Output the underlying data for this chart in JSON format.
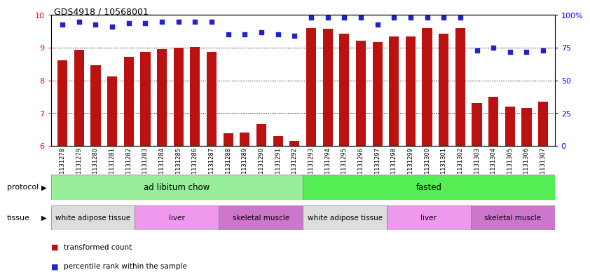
{
  "title": "GDS4918 / 10568001",
  "samples": [
    "GSM1131278",
    "GSM1131279",
    "GSM1131280",
    "GSM1131281",
    "GSM1131282",
    "GSM1131283",
    "GSM1131284",
    "GSM1131285",
    "GSM1131286",
    "GSM1131287",
    "GSM1131288",
    "GSM1131289",
    "GSM1131290",
    "GSM1131291",
    "GSM1131292",
    "GSM1131293",
    "GSM1131294",
    "GSM1131295",
    "GSM1131296",
    "GSM1131297",
    "GSM1131298",
    "GSM1131299",
    "GSM1131300",
    "GSM1131301",
    "GSM1131302",
    "GSM1131303",
    "GSM1131304",
    "GSM1131305",
    "GSM1131306",
    "GSM1131307"
  ],
  "bar_values": [
    8.62,
    8.93,
    8.47,
    8.12,
    8.73,
    8.87,
    8.97,
    9.0,
    9.02,
    8.87,
    6.38,
    6.4,
    6.67,
    6.3,
    6.15,
    9.6,
    9.58,
    9.43,
    9.22,
    9.18,
    9.35,
    9.35,
    9.6,
    9.43,
    9.6,
    7.32,
    7.5,
    7.2,
    7.15,
    7.35
  ],
  "percentile_values": [
    93,
    95,
    93,
    91,
    94,
    94,
    95,
    95,
    95,
    95,
    85,
    85,
    87,
    85,
    84,
    98,
    98,
    98,
    98,
    93,
    98,
    98,
    98,
    98,
    98,
    73,
    75,
    72,
    72,
    73
  ],
  "bar_color": "#bb1111",
  "dot_color": "#2222cc",
  "ylim_left": [
    6,
    10
  ],
  "ylim_right": [
    0,
    100
  ],
  "yticks_left": [
    6,
    7,
    8,
    9,
    10
  ],
  "yticks_right": [
    0,
    25,
    50,
    75,
    100
  ],
  "ytick_labels_right": [
    "0",
    "25",
    "50",
    "75",
    "100%"
  ],
  "protocol_groups": [
    {
      "label": "ad libitum chow",
      "start": 0,
      "end": 14,
      "color": "#99ee99"
    },
    {
      "label": "fasted",
      "start": 15,
      "end": 29,
      "color": "#55ee55"
    }
  ],
  "tissue_groups": [
    {
      "label": "white adipose tissue",
      "start": 0,
      "end": 4,
      "color": "#dddddd"
    },
    {
      "label": "liver",
      "start": 5,
      "end": 9,
      "color": "#ee99ee"
    },
    {
      "label": "skeletal muscle",
      "start": 10,
      "end": 14,
      "color": "#cc77cc"
    },
    {
      "label": "white adipose tissue",
      "start": 15,
      "end": 19,
      "color": "#dddddd"
    },
    {
      "label": "liver",
      "start": 20,
      "end": 24,
      "color": "#ee99ee"
    },
    {
      "label": "skeletal muscle",
      "start": 25,
      "end": 29,
      "color": "#cc77cc"
    }
  ],
  "bar_color_legend": "#bb1111",
  "dot_color_legend": "#2222cc",
  "grid_yticks": [
    7,
    8,
    9
  ],
  "background_color": "#ffffff"
}
